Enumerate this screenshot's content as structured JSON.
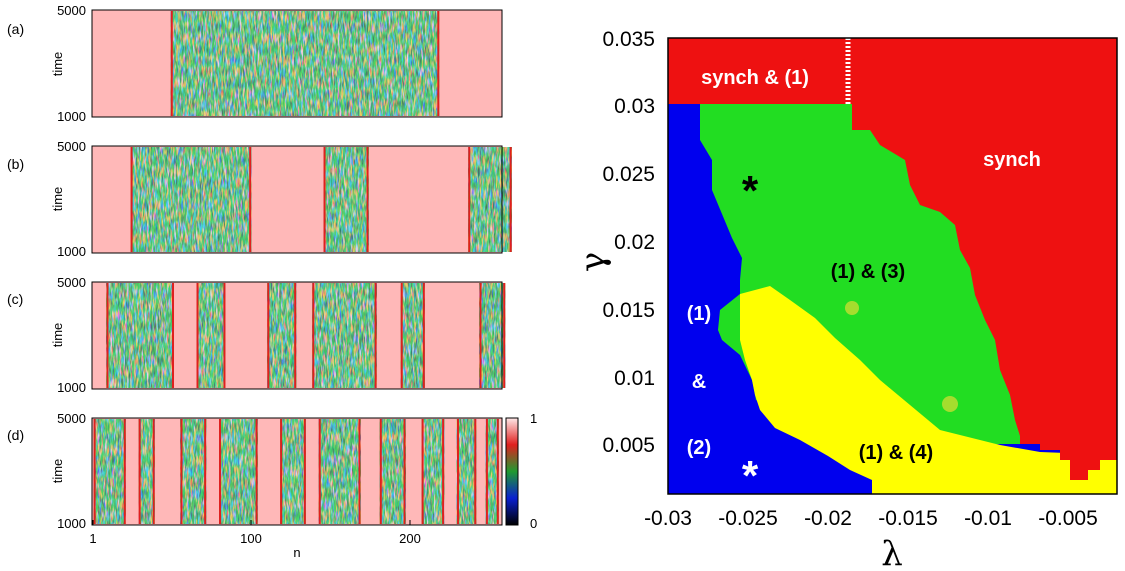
{
  "chart_data": [
    {
      "type": "heatmap",
      "panels": [
        {
          "label": "(a)",
          "ylabel": "time",
          "ytick_top": "5000",
          "ytick_bottom": "1000",
          "chaotic_bands": [
            [
              50,
              217
            ]
          ]
        },
        {
          "label": "(b)",
          "ylabel": "time",
          "ytick_top": "5000",
          "ytick_bottom": "1000",
          "chaotic_bands": [
            [
              25,
              100
            ],
            [
              145,
              173
            ],
            [
              235,
              262
            ]
          ]
        },
        {
          "label": "(c)",
          "ylabel": "time",
          "ytick_top": "5000",
          "ytick_bottom": "1000",
          "chaotic_bands": [
            [
              10,
              52
            ],
            [
              66,
              84
            ],
            [
              110,
              128
            ],
            [
              138,
              178
            ],
            [
              193,
              208
            ],
            [
              242,
              258
            ]
          ]
        },
        {
          "label": "(d)",
          "ylabel": "time",
          "ytick_top": "5000",
          "ytick_bottom": "1000",
          "chaotic_bands": [
            [
              2,
              22
            ],
            [
              30,
              40
            ],
            [
              56,
              72
            ],
            [
              80,
              104
            ],
            [
              118,
              134
            ],
            [
              142,
              168
            ],
            [
              180,
              196
            ],
            [
              206,
              220
            ],
            [
              228,
              240
            ],
            [
              246,
              254
            ]
          ]
        }
      ],
      "xlabel": "n",
      "xticks": [
        "1",
        "100",
        "200"
      ],
      "xlim": [
        1,
        256
      ],
      "colorbar": {
        "ticks": [
          "1",
          "0"
        ],
        "range": [
          0,
          1
        ],
        "colors": [
          "#000000",
          "#0a1fd0",
          "#1f9a30",
          "#e0201e",
          "#ffe8e8"
        ]
      },
      "sync_color": "#ffb8b8"
    },
    {
      "type": "heatmap",
      "xlabel": "λ",
      "ylabel": "γ",
      "xlim": [
        -0.03,
        -0.002
      ],
      "ylim": [
        0.001,
        0.035
      ],
      "xticks": [
        "-0.03",
        "-0.025",
        "-0.02",
        "-0.015",
        "-0.01",
        "-0.005"
      ],
      "yticks": [
        "0.035",
        "0.03",
        "0.025",
        "0.02",
        "0.015",
        "0.01",
        "0.005"
      ],
      "colors": {
        "synch": "#ee1111",
        "r13": "#22dd22",
        "r12": "#0000ee",
        "r14": "#ffff00"
      },
      "regions": {
        "synch_top": {
          "text": "synch & (1)",
          "color": "#ffffff"
        },
        "synch": {
          "text": "synch",
          "color": "#ffffff"
        },
        "r13": {
          "text": "(1) & (3)",
          "color": "#000000"
        },
        "r14": {
          "text": "(1) & (4)",
          "color": "#000000"
        },
        "r12_a": {
          "text": "(1)",
          "color": "#ffffff"
        },
        "r12_b": {
          "text": "&",
          "color": "#ffffff"
        },
        "r12_c": {
          "text": "(2)",
          "color": "#ffffff"
        }
      },
      "markers": [
        {
          "symbol": "*",
          "lambda": -0.0255,
          "gamma": 0.0245,
          "color": "#000000"
        },
        {
          "symbol": "*",
          "lambda": -0.0255,
          "gamma": 0.0025,
          "color": "#ffffff"
        }
      ]
    }
  ]
}
